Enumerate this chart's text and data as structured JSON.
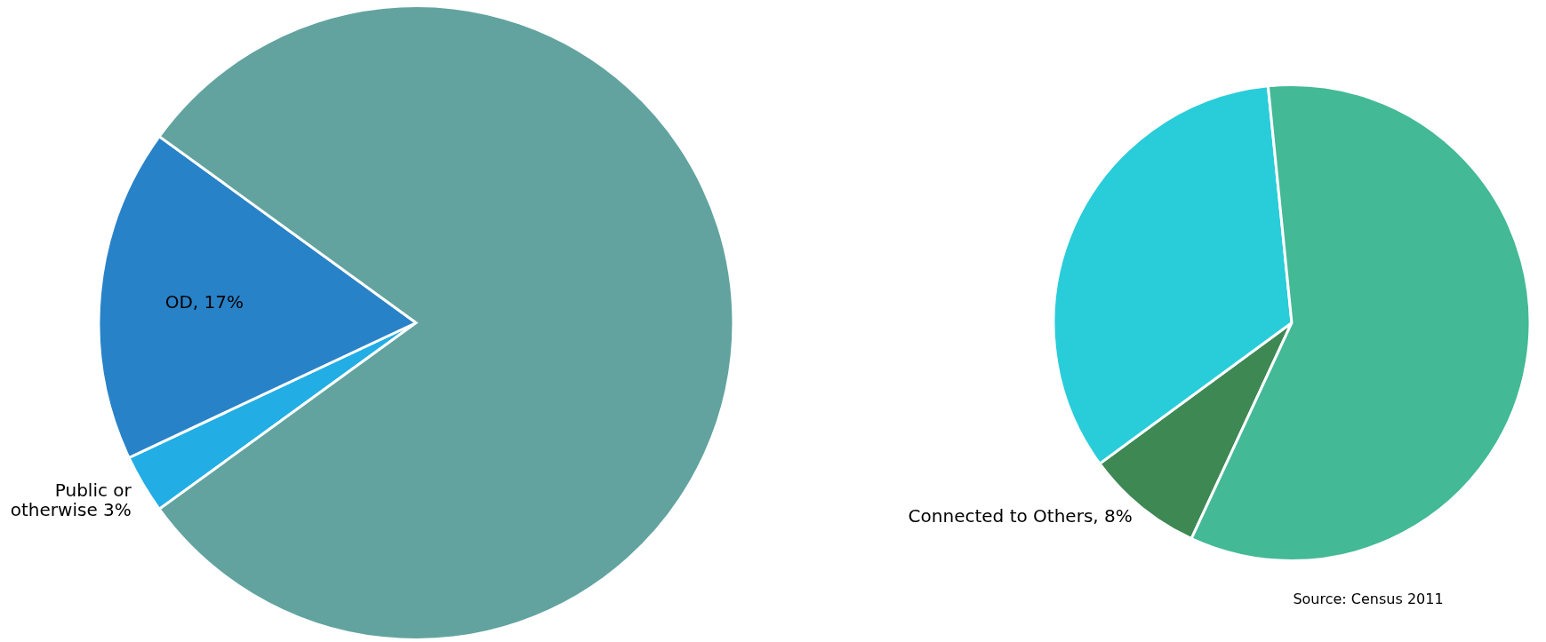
{
  "chart_data": [
    {
      "type": "pie",
      "categories": [
        null,
        null,
        null
      ],
      "values": [
        3,
        17,
        80
      ],
      "colors": [
        "#22aee4",
        "#2882c8",
        "#62a39f"
      ],
      "value_labels": [
        "Public or\notherwise 3%",
        "OD, 17%",
        null
      ]
    },
    {
      "type": "pie",
      "categories": [
        null,
        null,
        null
      ],
      "values": [
        8,
        33.5,
        58.5
      ],
      "colors": [
        "#3e8854",
        "#29cdd9",
        "#43b996"
      ],
      "value_labels": [
        "Connected to Others, 8%",
        null,
        null
      ],
      "annotations": [
        "Source: Census 2011"
      ]
    }
  ]
}
